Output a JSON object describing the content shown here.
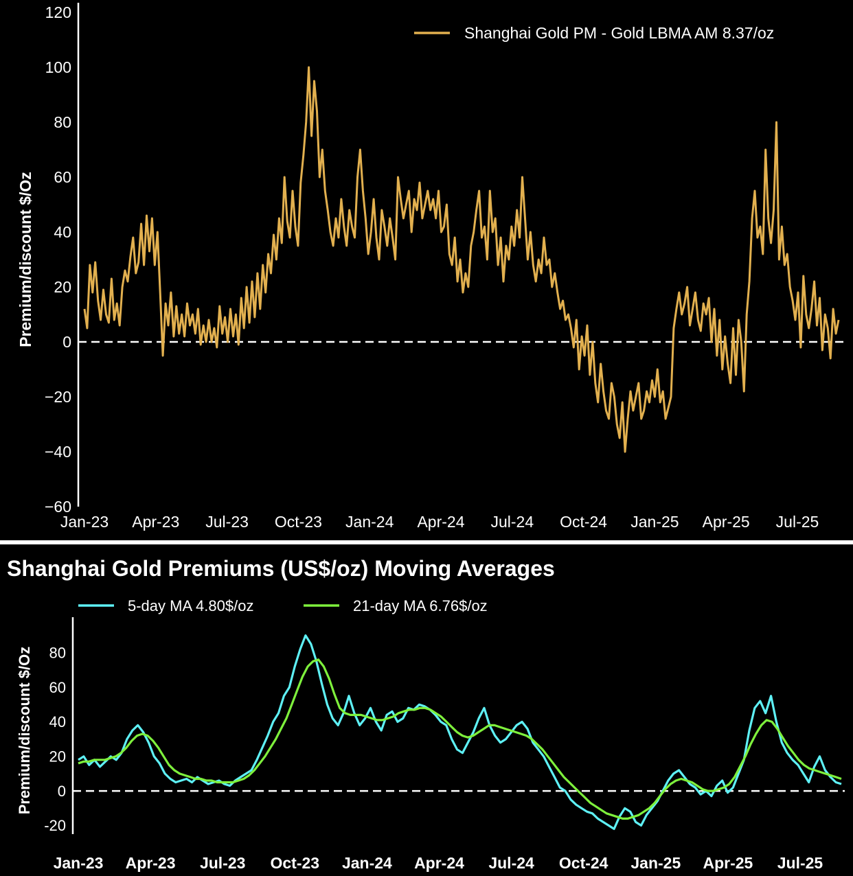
{
  "charts": [
    {
      "type": "line",
      "title": "",
      "ylabel": "Premium/discount $/Oz",
      "ylim": [
        -60,
        120
      ],
      "y_ticks": [
        "120",
        "100",
        "80",
        "60",
        "40",
        "20",
        "0",
        "−20",
        "−40",
        "−60"
      ],
      "y_tick_values": [
        120,
        100,
        80,
        60,
        40,
        20,
        0,
        -20,
        -40,
        -60
      ],
      "x_ticks": [
        "Jan-23",
        "Apr-23",
        "Jul-23",
        "Oct-23",
        "Jan-24",
        "Apr-24",
        "Jul-24",
        "Oct-24",
        "Jan-25",
        "Apr-25",
        "Jul-25"
      ],
      "zero_line": "dashed",
      "legend_position": "top-right",
      "series": [
        {
          "name": "Shanghai Gold PM - Gold LBMA AM 8.37/oz",
          "color": "#e2b04f",
          "values": [
            12,
            5,
            28,
            18,
            29,
            15,
            8,
            19,
            10,
            7,
            23,
            8,
            14,
            6,
            20,
            26,
            22,
            31,
            38,
            25,
            29,
            43,
            28,
            46,
            33,
            45,
            28,
            40,
            18,
            -5,
            14,
            6,
            18,
            2,
            13,
            3,
            10,
            2,
            14,
            6,
            10,
            3,
            12,
            -1,
            6,
            0,
            8,
            0,
            5,
            -2,
            13,
            3,
            9,
            0,
            12,
            2,
            10,
            -1,
            16,
            5,
            20,
            7,
            22,
            9,
            25,
            12,
            28,
            18,
            32,
            25,
            39,
            30,
            45,
            36,
            60,
            44,
            38,
            55,
            42,
            35,
            58,
            68,
            80,
            100,
            75,
            95,
            84,
            60,
            70,
            55,
            48,
            40,
            35,
            45,
            38,
            52,
            42,
            35,
            48,
            42,
            38,
            60,
            70,
            55,
            45,
            32,
            40,
            52,
            38,
            30,
            48,
            42,
            35,
            45,
            38,
            30,
            60,
            52,
            45,
            50,
            55,
            40,
            52,
            48,
            58,
            45,
            50,
            55,
            48,
            52,
            45,
            55,
            40,
            42,
            50,
            32,
            28,
            38,
            22,
            30,
            18,
            25,
            20,
            35,
            40,
            48,
            55,
            38,
            42,
            30,
            55,
            40,
            45,
            28,
            38,
            22,
            35,
            30,
            42,
            35,
            48,
            38,
            60,
            45,
            30,
            40,
            28,
            22,
            30,
            25,
            38,
            28,
            30,
            20,
            25,
            18,
            12,
            15,
            8,
            10,
            5,
            -2,
            8,
            -10,
            2,
            -5,
            6,
            -12,
            0,
            -15,
            -22,
            -8,
            -18,
            -25,
            -28,
            -15,
            -20,
            -30,
            -35,
            -22,
            -40,
            -28,
            -18,
            -25,
            -20,
            -15,
            -28,
            -25,
            -18,
            -22,
            -14,
            -20,
            -10,
            -22,
            -18,
            -28,
            -24,
            -20,
            5,
            12,
            18,
            10,
            14,
            20,
            6,
            12,
            18,
            8,
            4,
            14,
            10,
            16,
            0,
            12,
            -5,
            8,
            -10,
            2,
            -8,
            -15,
            5,
            -12,
            8,
            0,
            -18,
            10,
            22,
            45,
            55,
            38,
            42,
            32,
            70,
            45,
            36,
            48,
            80,
            30,
            42,
            28,
            32,
            20,
            15,
            8,
            18,
            -2,
            24,
            10,
            5,
            12,
            22,
            6,
            16,
            -3,
            10,
            5,
            -6,
            12,
            3,
            8
          ]
        }
      ]
    },
    {
      "type": "line",
      "title": "Shanghai Gold Premiums (US$/oz) Moving Averages",
      "ylabel": "Premium/discount $/Oz",
      "ylim": [
        -25,
        95
      ],
      "y_ticks": [
        "80",
        "60",
        "40",
        "20",
        "0",
        "-20"
      ],
      "y_tick_values": [
        80,
        60,
        40,
        20,
        0,
        -20
      ],
      "x_ticks": [
        "Jan-23",
        "Apr-23",
        "Jul-23",
        "Oct-23",
        "Jan-24",
        "Apr-24",
        "Jul-24",
        "Oct-24",
        "Jan-25",
        "Apr-25",
        "Jul-25"
      ],
      "zero_line": "dashed",
      "legend_position": "top-left",
      "series": [
        {
          "name": "5-day MA 4.80$/oz",
          "color": "#5ef0f5",
          "values": [
            18,
            20,
            15,
            18,
            14,
            17,
            20,
            18,
            22,
            30,
            35,
            38,
            34,
            28,
            20,
            16,
            10,
            7,
            5,
            6,
            7,
            5,
            8,
            6,
            4,
            5,
            6,
            4,
            3,
            6,
            8,
            10,
            12,
            18,
            25,
            32,
            40,
            45,
            55,
            60,
            72,
            82,
            90,
            85,
            75,
            62,
            50,
            42,
            38,
            45,
            55,
            45,
            38,
            42,
            48,
            40,
            35,
            44,
            46,
            40,
            42,
            48,
            47,
            50,
            49,
            47,
            44,
            40,
            38,
            30,
            24,
            22,
            28,
            34,
            42,
            48,
            38,
            32,
            28,
            30,
            34,
            38,
            40,
            36,
            28,
            24,
            20,
            14,
            8,
            2,
            0,
            -5,
            -8,
            -10,
            -12,
            -13,
            -16,
            -18,
            -20,
            -22,
            -15,
            -10,
            -12,
            -18,
            -20,
            -14,
            -10,
            -6,
            0,
            6,
            10,
            12,
            8,
            4,
            2,
            -2,
            0,
            -3,
            3,
            6,
            -1,
            2,
            10,
            18,
            35,
            48,
            52,
            45,
            55,
            40,
            28,
            22,
            18,
            15,
            10,
            5,
            14,
            20,
            12,
            8,
            5,
            4
          ]
        },
        {
          "name": "21-day MA 6.76$/oz",
          "color": "#7ef03c",
          "values": [
            16,
            17,
            17,
            18,
            18,
            18,
            19,
            20,
            22,
            25,
            29,
            32,
            33,
            32,
            29,
            25,
            20,
            15,
            12,
            10,
            9,
            8,
            7,
            7,
            6,
            6,
            5,
            5,
            5,
            5,
            6,
            7,
            9,
            12,
            16,
            20,
            25,
            30,
            36,
            42,
            50,
            58,
            66,
            72,
            75,
            76,
            72,
            65,
            56,
            48,
            45,
            44,
            44,
            44,
            43,
            42,
            41,
            41,
            42,
            43,
            45,
            46,
            47,
            47,
            48,
            48,
            47,
            45,
            43,
            40,
            37,
            34,
            32,
            31,
            32,
            34,
            36,
            38,
            38,
            37,
            36,
            35,
            34,
            33,
            32,
            30,
            27,
            24,
            20,
            16,
            12,
            8,
            5,
            2,
            -1,
            -4,
            -7,
            -9,
            -11,
            -13,
            -14,
            -15,
            -16,
            -16,
            -15,
            -14,
            -12,
            -10,
            -7,
            -3,
            1,
            4,
            6,
            7,
            6,
            5,
            3,
            1,
            0,
            0,
            1,
            2,
            4,
            8,
            14,
            20,
            27,
            33,
            38,
            41,
            40,
            36,
            31,
            26,
            22,
            18,
            15,
            13,
            12,
            11,
            10,
            9,
            8,
            7
          ]
        }
      ]
    }
  ]
}
